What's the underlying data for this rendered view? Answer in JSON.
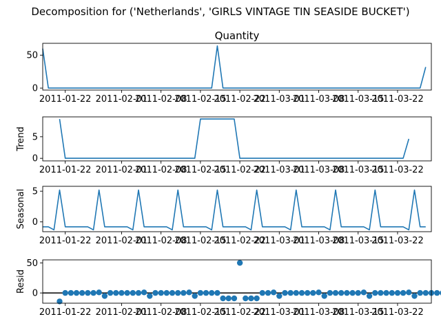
{
  "figure": {
    "suptitle": "Decomposition for ('Netherlands', 'GIRLS VINTAGE TIN SEASIDE BUCKET')",
    "line_color": "#1f77b4",
    "marker_color": "#1f77b4",
    "zero_line_color": "#000000"
  },
  "x_tick_labels": [
    "2011-01-22",
    "2011-02-01",
    "2011-02-08",
    "2011-02-15",
    "2011-02-22",
    "2011-03-01",
    "2011-03-08",
    "2011-03-15",
    "2011-03-22"
  ],
  "chart_data": [
    {
      "type": "line",
      "title": "Quantity",
      "ylabel": "",
      "x_start": "2011-01-18",
      "x_step_days": 1,
      "ylim": [
        -3,
        68
      ],
      "yticks": [
        0,
        50
      ],
      "values": [
        60,
        0,
        0,
        0,
        0,
        0,
        0,
        0,
        0,
        0,
        0,
        0,
        0,
        0,
        0,
        0,
        0,
        0,
        0,
        0,
        0,
        0,
        0,
        0,
        0,
        0,
        0,
        0,
        0,
        0,
        0,
        64,
        0,
        0,
        0,
        0,
        0,
        0,
        0,
        0,
        0,
        0,
        0,
        0,
        0,
        0,
        0,
        0,
        0,
        0,
        0,
        0,
        0,
        0,
        0,
        0,
        0,
        0,
        0,
        0,
        0,
        0,
        0,
        0,
        0,
        0,
        0,
        0,
        32
      ]
    },
    {
      "type": "line",
      "title": "",
      "ylabel": "Trend",
      "x_start": "2011-01-21",
      "x_step_days": 1,
      "ylim": [
        -0.6,
        9.6
      ],
      "yticks": [
        0,
        5
      ],
      "values": [
        9.1,
        0,
        0,
        0,
        0,
        0,
        0,
        0,
        0,
        0,
        0,
        0,
        0,
        0,
        0,
        0,
        0,
        0,
        0,
        0,
        0,
        0,
        0,
        0,
        0,
        9.1,
        9.1,
        9.1,
        9.1,
        9.1,
        9.1,
        9.1,
        0,
        0,
        0,
        0,
        0,
        0,
        0,
        0,
        0,
        0,
        0,
        0,
        0,
        0,
        0,
        0,
        0,
        0,
        0,
        0,
        0,
        0,
        0,
        0,
        0,
        0,
        0,
        0,
        0,
        0,
        4.5
      ]
    },
    {
      "type": "line",
      "title": "",
      "ylabel": "Seasonal",
      "x_start": "2011-01-18",
      "x_step_days": 1,
      "ylim": [
        -1.6,
        5.8
      ],
      "yticks": [
        0,
        5
      ],
      "values": [
        -0.8,
        -0.8,
        -1.3,
        5.2,
        -0.8,
        -0.8,
        -0.8,
        -0.8,
        -0.8,
        -1.3,
        5.2,
        -0.8,
        -0.8,
        -0.8,
        -0.8,
        -0.8,
        -1.3,
        5.2,
        -0.8,
        -0.8,
        -0.8,
        -0.8,
        -0.8,
        -1.3,
        5.2,
        -0.8,
        -0.8,
        -0.8,
        -0.8,
        -0.8,
        -1.3,
        5.2,
        -0.8,
        -0.8,
        -0.8,
        -0.8,
        -0.8,
        -1.3,
        5.2,
        -0.8,
        -0.8,
        -0.8,
        -0.8,
        -0.8,
        -1.3,
        5.2,
        -0.8,
        -0.8,
        -0.8,
        -0.8,
        -0.8,
        -1.3,
        5.2,
        -0.8,
        -0.8,
        -0.8,
        -0.8,
        -0.8,
        -1.3,
        5.2,
        -0.8,
        -0.8,
        -0.8,
        -0.8,
        -0.8,
        -1.3,
        5.2,
        -0.8,
        -0.8
      ]
    },
    {
      "type": "scatter",
      "title": "",
      "ylabel": "Resid",
      "x_start": "2011-01-21",
      "x_step_days": 1,
      "ylim": [
        -17,
        55
      ],
      "yticks": [
        0,
        50
      ],
      "zero_line": true,
      "values": [
        -14,
        0,
        0,
        0,
        0,
        0,
        0,
        1,
        -5,
        0,
        0,
        0,
        0,
        0,
        0,
        1,
        -5,
        0,
        0,
        0,
        0,
        0,
        0,
        1,
        -5,
        0,
        0,
        0,
        0,
        -9,
        -9,
        -9,
        50,
        -9,
        -9,
        -9,
        0,
        0,
        1,
        -5,
        0,
        0,
        0,
        0,
        0,
        0,
        1,
        -5,
        0,
        0,
        0,
        0,
        0,
        0,
        1,
        -5,
        0,
        0,
        0,
        0,
        0,
        0,
        1,
        -5,
        0,
        0,
        0,
        0,
        0,
        0,
        -3
      ]
    }
  ]
}
